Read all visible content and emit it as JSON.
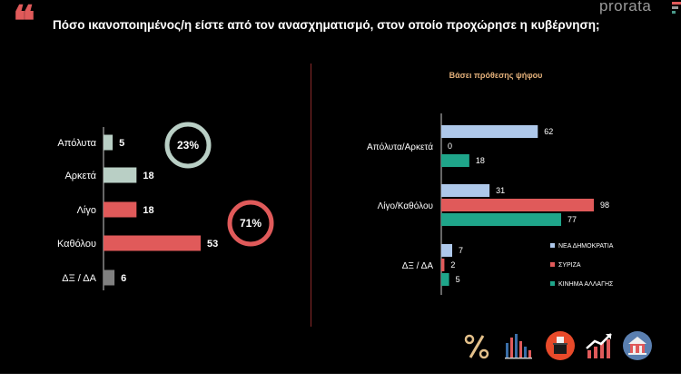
{
  "question": "Πόσο ικανοποιημένος/η είστε από τον ανασχηματισμό, στον οποίο προχώρησε η κυβέρνηση;",
  "brand": "prorata",
  "icons": [
    "percent-icon",
    "bar-chart-icon",
    "ballot-box-icon",
    "trend-chart-icon",
    "town-hall-icon"
  ],
  "chart_data": [
    {
      "type": "bar",
      "orientation": "horizontal",
      "categories": [
        "Απόλυτα",
        "Αρκετά",
        "Λίγο",
        "Καθόλου",
        "ΔΞ / ΔΑ"
      ],
      "values": [
        5,
        18,
        18,
        53,
        6
      ],
      "colors": [
        "#b9cfc5",
        "#b9cfc5",
        "#e05a5a",
        "#e05a5a",
        "#808080"
      ],
      "xlim": [
        0,
        53
      ],
      "annotations": [
        {
          "label": "23%",
          "ring_color": "#b9cfc5",
          "group": [
            "Απόλυτα",
            "Αρκετά"
          ]
        },
        {
          "label": "71%",
          "ring_color": "#e05a5a",
          "group": [
            "Λίγο",
            "Καθόλου"
          ]
        }
      ]
    },
    {
      "type": "bar",
      "orientation": "horizontal",
      "title": "Βάσει πρόθεσης ψήφου",
      "categories": [
        "Απόλυτα/Αρκετά",
        "Λίγο/Καθόλου",
        "ΔΞ / ΔΑ"
      ],
      "series": [
        {
          "name": "ΝΕΑ ΔΗΜΟΚΡΑΤΙΑ",
          "color": "#aec8ea",
          "values": [
            62,
            31,
            7
          ]
        },
        {
          "name": "ΣΥΡΙΖΑ",
          "color": "#e05a5a",
          "values": [
            0,
            98,
            2
          ]
        },
        {
          "name": "ΚΙΝΗΜΑ ΑΛΛΑΓΗΣ",
          "color": "#1fa58a",
          "values": [
            18,
            77,
            5
          ]
        }
      ],
      "xlim": [
        0,
        98
      ],
      "legend": "right"
    }
  ]
}
